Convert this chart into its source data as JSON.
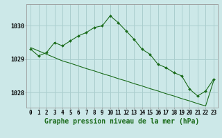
{
  "hours": [
    0,
    1,
    2,
    3,
    4,
    5,
    6,
    7,
    8,
    9,
    10,
    11,
    12,
    13,
    14,
    15,
    16,
    17,
    18,
    19,
    20,
    21,
    22,
    23
  ],
  "pressure": [
    1029.3,
    1029.1,
    1029.2,
    1029.5,
    1029.4,
    1029.55,
    1029.7,
    1029.8,
    1029.95,
    1030.0,
    1030.3,
    1030.1,
    1029.85,
    1029.6,
    1029.3,
    1029.15,
    1028.85,
    1028.75,
    1028.6,
    1028.5,
    1028.1,
    1027.9,
    1028.05,
    1028.4
  ],
  "trend": [
    1029.35,
    1029.25,
    1029.15,
    1029.05,
    1028.95,
    1028.88,
    1028.8,
    1028.72,
    1028.65,
    1028.57,
    1028.5,
    1028.42,
    1028.35,
    1028.27,
    1028.2,
    1028.12,
    1028.05,
    1027.97,
    1027.9,
    1027.82,
    1027.75,
    1027.67,
    1027.6,
    1028.35
  ],
  "line_color": "#1a6b1a",
  "bg_color": "#cce8e8",
  "grid_color": "#aacece",
  "title": "Graphe pression niveau de la mer (hPa)",
  "ylim_min": 1027.55,
  "ylim_max": 1030.65,
  "yticks": [
    1028,
    1029,
    1030
  ],
  "ytick_labels": [
    "1028",
    "1029",
    "1030"
  ],
  "xlabel_fontsize": 7,
  "tick_fontsize": 5.5,
  "figwidth": 3.2,
  "figheight": 2.0,
  "dpi": 100
}
